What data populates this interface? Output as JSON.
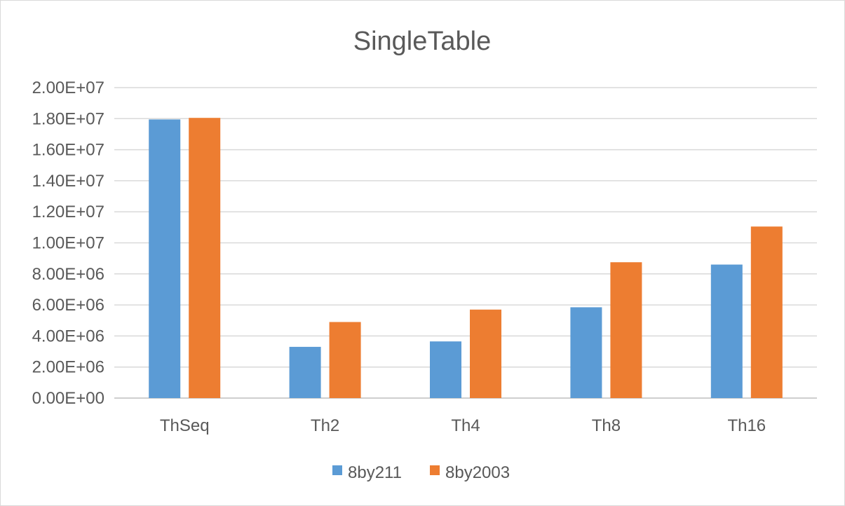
{
  "chart_data": {
    "type": "bar",
    "title": "SingleTable",
    "categories": [
      "ThSeq",
      "Th2",
      "Th4",
      "Th8",
      "Th16"
    ],
    "series": [
      {
        "name": "8by211",
        "color": "#5b9bd5",
        "values": [
          17950000,
          3300000,
          3650000,
          5850000,
          8600000
        ]
      },
      {
        "name": "8by2003",
        "color": "#ed7d31",
        "values": [
          18050000,
          4900000,
          5700000,
          8750000,
          11050000
        ]
      }
    ],
    "ylim": [
      0,
      20000000
    ],
    "yticks": [
      "0.00E+00",
      "2.00E+06",
      "4.00E+06",
      "6.00E+06",
      "8.00E+06",
      "1.00E+07",
      "1.20E+07",
      "1.40E+07",
      "1.60E+07",
      "1.80E+07",
      "2.00E+07"
    ],
    "grid": true,
    "legend_position": "bottom"
  }
}
